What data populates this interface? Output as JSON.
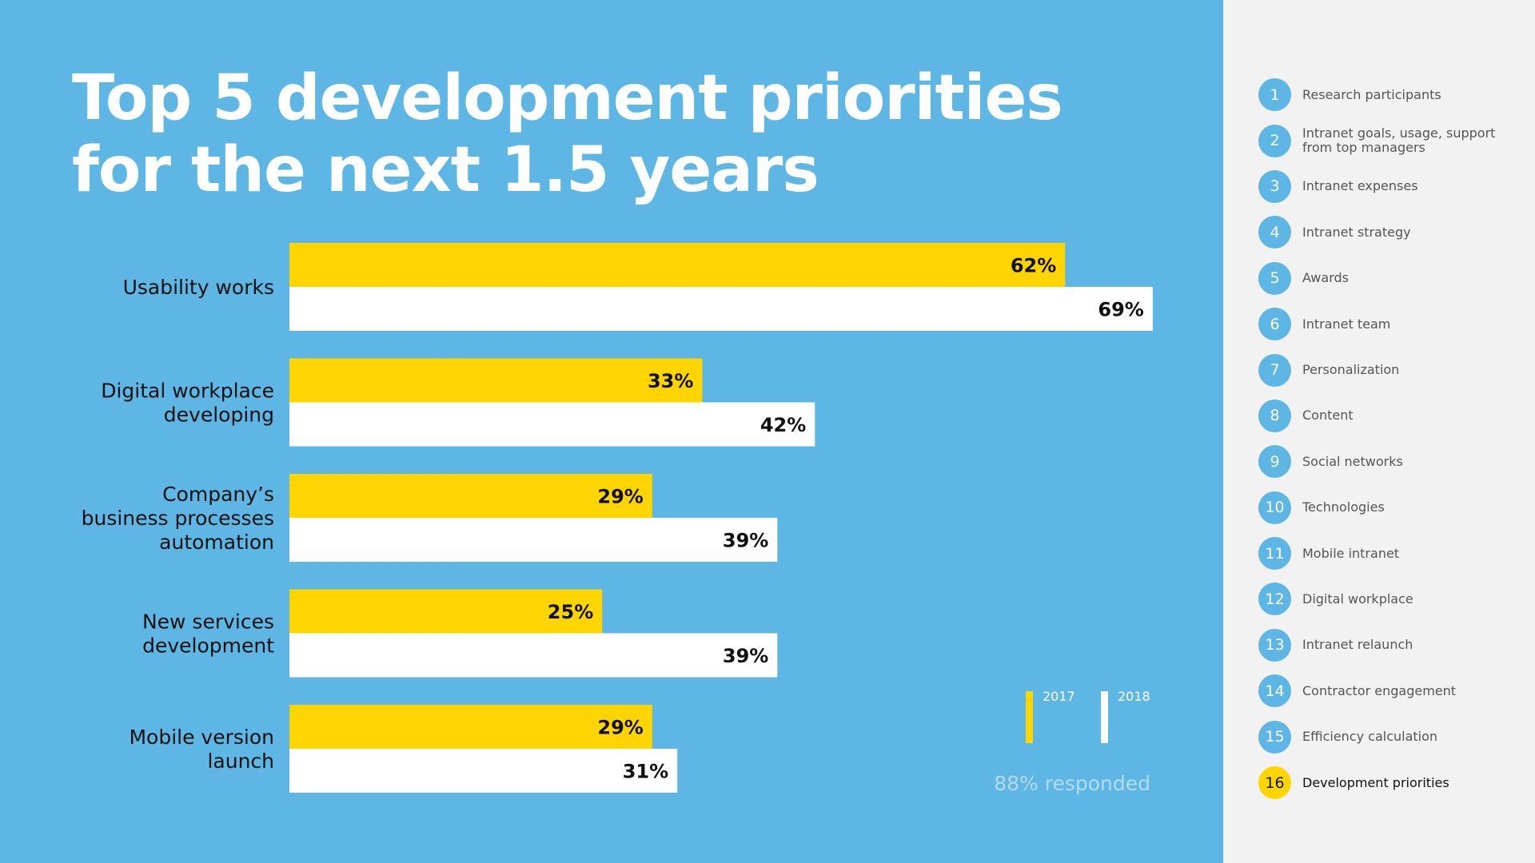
{
  "title_line1": "Top 5 development priorities",
  "title_line2": "for the next 1.5 years",
  "colors": {
    "background": "#5DB6E4",
    "series_2017": "#FFD500",
    "series_2018": "#FFFFFF",
    "sidebar": "#F2F2F2"
  },
  "chart_data": {
    "type": "bar",
    "orientation": "horizontal",
    "title": "Top 5 development priorities for the next 1.5 years",
    "categories": [
      [
        "Usability works"
      ],
      [
        "Digital workplace",
        "developing"
      ],
      [
        "Company’s",
        "business processes",
        "automation"
      ],
      [
        "New services",
        "development"
      ],
      [
        "Mobile version",
        "launch"
      ]
    ],
    "series": [
      {
        "name": "2017",
        "color": "#FFD500",
        "values": [
          62,
          33,
          29,
          25,
          29
        ]
      },
      {
        "name": "2018",
        "color": "#FFFFFF",
        "values": [
          69,
          42,
          39,
          39,
          31
        ]
      }
    ],
    "value_suffix": "%",
    "xlim": [
      0,
      100
    ],
    "grid": false,
    "legend_position": "bottom-right"
  },
  "legend": {
    "y2017": "2017",
    "y2018": "2018"
  },
  "responded": "88% responded",
  "sidebar": {
    "items": [
      {
        "num": "1",
        "label": "Research participants"
      },
      {
        "num": "2",
        "label": "Intranet goals, usage, support\nfrom top managers"
      },
      {
        "num": "3",
        "label": "Intranet expenses"
      },
      {
        "num": "4",
        "label": "Intranet strategy"
      },
      {
        "num": "5",
        "label": "Awards"
      },
      {
        "num": "6",
        "label": "Intranet team"
      },
      {
        "num": "7",
        "label": "Personalization"
      },
      {
        "num": "8",
        "label": "Content"
      },
      {
        "num": "9",
        "label": "Social networks"
      },
      {
        "num": "10",
        "label": "Technologies"
      },
      {
        "num": "11",
        "label": "Mobile intranet"
      },
      {
        "num": "12",
        "label": "Digital workplace"
      },
      {
        "num": "13",
        "label": "Intranet relaunch"
      },
      {
        "num": "14",
        "label": "Contractor engagement"
      },
      {
        "num": "15",
        "label": "Efficiency calculation"
      },
      {
        "num": "16",
        "label": "Development priorities",
        "active": true
      }
    ]
  }
}
